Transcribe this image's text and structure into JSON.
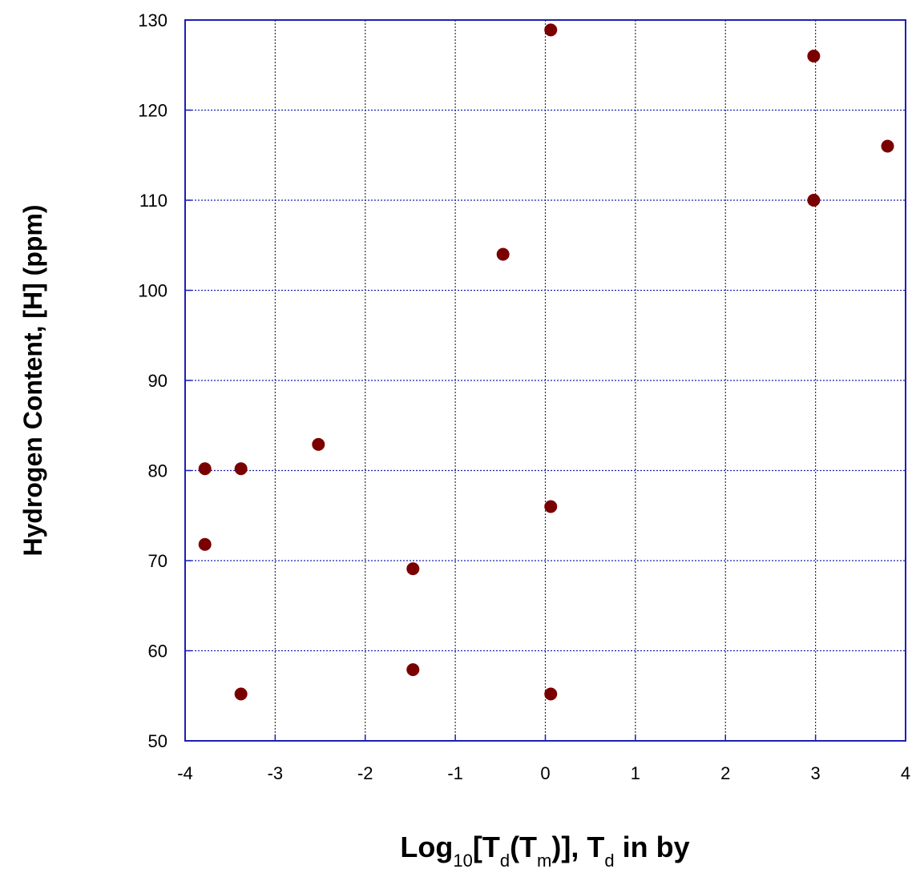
{
  "chart_data": {
    "type": "scatter",
    "title": "",
    "xlabel": {
      "parts": [
        {
          "text": "Log",
          "sub": false
        },
        {
          "text": "10",
          "sub": true
        },
        {
          "text": "[T",
          "sub": false
        },
        {
          "text": "d",
          "sub": true
        },
        {
          "text": "(T",
          "sub": false
        },
        {
          "text": "m",
          "sub": true
        },
        {
          "text": ")], T",
          "sub": false
        },
        {
          "text": "d",
          "sub": true
        },
        {
          "text": " in by",
          "sub": false
        }
      ]
    },
    "ylabel": "Hydrogen Content, [H] (ppm)",
    "xlim": [
      -4,
      4
    ],
    "ylim": [
      50,
      130
    ],
    "xticks": [
      -4,
      -3,
      -2,
      -1,
      0,
      1,
      2,
      3,
      4
    ],
    "yticks": [
      50,
      60,
      70,
      80,
      90,
      100,
      110,
      120,
      130
    ],
    "xtick_labels": [
      "-4",
      "-3",
      "-2",
      "-1",
      "0",
      "1",
      "2",
      "3",
      "4"
    ],
    "ytick_labels": [
      "50",
      "60",
      "70",
      "80",
      "90",
      "100",
      "110",
      "120",
      "130"
    ],
    "grid": true,
    "legend": "none",
    "colors": {
      "points": "#7a0000",
      "frame": "#1f1fb4",
      "grid": "#1f1fb4",
      "vgrid": "#333333"
    },
    "series": [
      {
        "points": [
          {
            "x": -3.78,
            "y": 80.2
          },
          {
            "x": -3.78,
            "y": 71.8
          },
          {
            "x": -3.38,
            "y": 80.2
          },
          {
            "x": -3.38,
            "y": 55.2
          },
          {
            "x": -2.52,
            "y": 82.9
          },
          {
            "x": -1.47,
            "y": 69.1
          },
          {
            "x": -1.47,
            "y": 57.9
          },
          {
            "x": -0.47,
            "y": 104.0
          },
          {
            "x": 0.06,
            "y": 128.9
          },
          {
            "x": 0.06,
            "y": 76.0
          },
          {
            "x": 0.06,
            "y": 55.2
          },
          {
            "x": 2.98,
            "y": 126.0
          },
          {
            "x": 2.98,
            "y": 110.0
          },
          {
            "x": 3.8,
            "y": 116.0
          }
        ]
      }
    ]
  }
}
